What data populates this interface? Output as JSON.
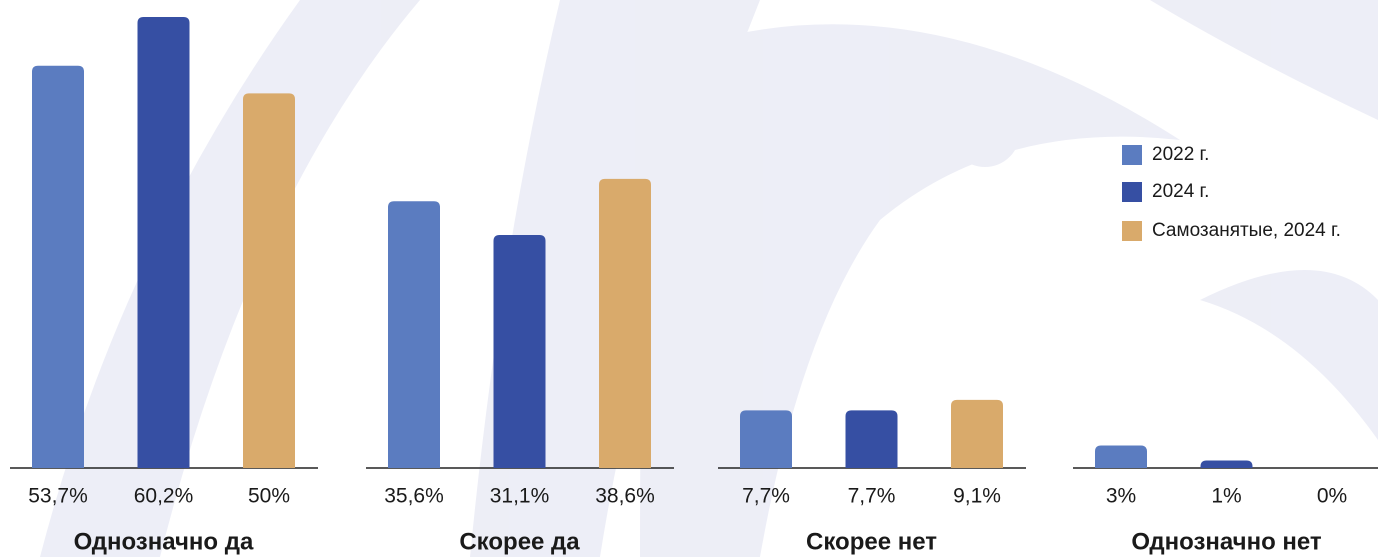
{
  "chart_data": {
    "type": "bar",
    "categories": [
      "Однозначно да",
      "Скорее да",
      "Скорее нет",
      "Однозначно нет"
    ],
    "series": [
      {
        "name": "2022 г.",
        "color": "#5b7cc0",
        "values": [
          53.7,
          35.6,
          7.7,
          3
        ],
        "value_labels": [
          "53,7%",
          "35,6%",
          "7,7%",
          "3%"
        ]
      },
      {
        "name": "2024 г.",
        "color": "#364fa3",
        "values": [
          60.2,
          31.1,
          7.7,
          1
        ],
        "value_labels": [
          "60,2%",
          "31,1%",
          "7,7%",
          "1%"
        ]
      },
      {
        "name": "Самозанятые, 2024 г.",
        "color": "#d9aa6b",
        "values": [
          50,
          38.6,
          9.1,
          0
        ],
        "value_labels": [
          "50%",
          "38,6%",
          "9,1%",
          "0%"
        ]
      }
    ],
    "legend": "right"
  }
}
